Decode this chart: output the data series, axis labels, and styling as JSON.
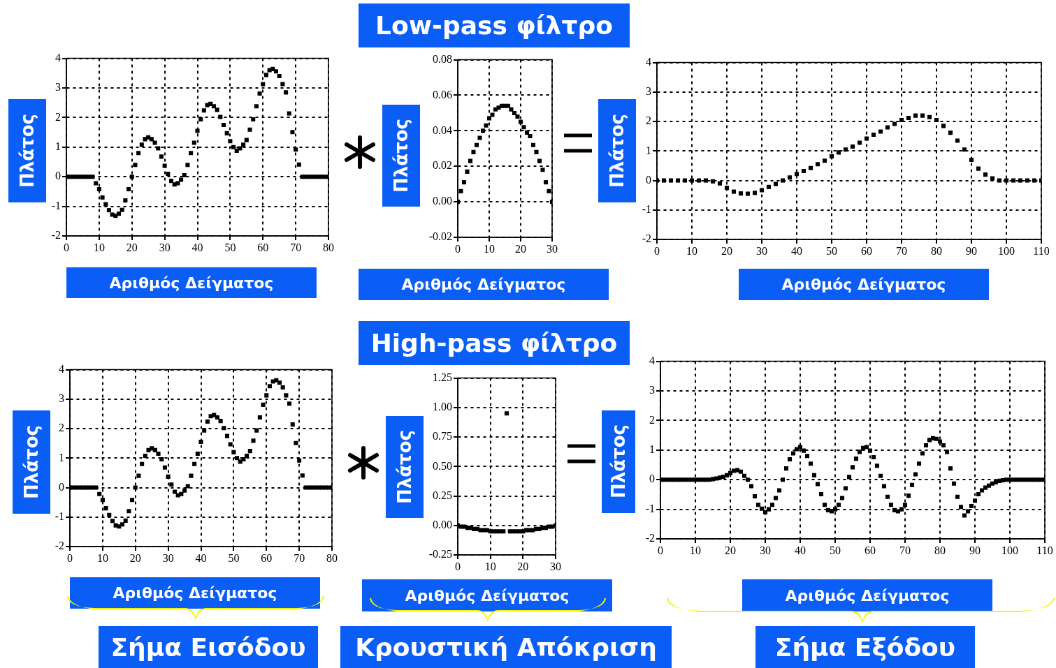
{
  "chart_data": [
    {
      "type": "scatter",
      "xlabel": "Αριθμός Δείγματος",
      "ylabel": "Πλάτος",
      "marker": "square",
      "grid": true,
      "legend": false,
      "xlim": [
        0,
        80
      ],
      "xticks": [
        0,
        10,
        20,
        30,
        40,
        50,
        60,
        70,
        80
      ],
      "ylim": [
        -2,
        4
      ],
      "yticks": [
        -2,
        -1,
        0,
        1,
        2,
        3,
        4
      ],
      "series": [
        {
          "color": "#000000",
          "x": [
            0,
            1,
            2,
            3,
            4,
            5,
            6,
            7,
            8,
            9,
            10,
            11,
            12,
            13,
            14,
            15,
            16,
            17,
            18,
            19,
            20,
            21,
            22,
            23,
            24,
            25,
            26,
            27,
            28,
            29,
            30,
            31,
            32,
            33,
            34,
            35,
            36,
            37,
            38,
            39,
            40,
            41,
            42,
            43,
            44,
            45,
            46,
            47,
            48,
            49,
            50,
            51,
            52,
            53,
            54,
            55,
            56,
            57,
            58,
            59,
            60,
            61,
            62,
            63,
            64,
            65,
            66,
            67,
            68,
            69,
            70,
            71,
            72,
            73,
            74,
            75,
            76,
            77,
            78,
            79,
            80
          ],
          "values": [
            0,
            0,
            0,
            0,
            0,
            0,
            0,
            0,
            0,
            -0.22,
            -0.42,
            -0.7,
            -0.93,
            -1.13,
            -1.28,
            -1.32,
            -1.25,
            -1.12,
            -0.8,
            -0.42,
            0,
            0.4,
            0.8,
            1.08,
            1.27,
            1.33,
            1.27,
            1.15,
            0.96,
            0.68,
            0.37,
            0.1,
            -0.14,
            -0.26,
            -0.22,
            -0.1,
            0.05,
            0.4,
            0.8,
            1.15,
            1.55,
            1.94,
            2.24,
            2.42,
            2.46,
            2.38,
            2.26,
            2.02,
            1.75,
            1.47,
            1.2,
            1.0,
            0.88,
            0.96,
            1.08,
            1.24,
            1.59,
            1.94,
            2.38,
            2.81,
            3.13,
            3.44,
            3.6,
            3.64,
            3.56,
            3.4,
            3.13,
            2.85,
            2.14,
            1.51,
            0.92,
            0.41,
            0,
            0,
            0,
            0,
            0,
            0,
            0,
            0,
            0
          ]
        }
      ]
    },
    {
      "type": "scatter",
      "title": "Low-pass φίλτρο",
      "xlabel": "Αριθμός Δείγματος",
      "ylabel": "Πλάτος",
      "marker": "square",
      "grid": true,
      "legend": false,
      "xlim": [
        0,
        30
      ],
      "xticks": [
        0,
        10,
        20,
        30
      ],
      "ylim": [
        -0.02,
        0.08
      ],
      "yticks": [
        -0.02,
        {
          "value": 0,
          "label": "0.00"
        },
        0.02,
        0.04,
        0.06,
        0.08
      ],
      "series": [
        {
          "color": "#000000",
          "x": [
            0,
            1,
            2,
            3,
            4,
            5,
            6,
            7,
            8,
            9,
            10,
            11,
            12,
            13,
            14,
            15,
            16,
            17,
            18,
            19,
            20,
            21,
            22,
            23,
            24,
            25,
            26,
            27,
            28,
            29,
            30
          ],
          "values": [
            0,
            0.006,
            0.011,
            0.017,
            0.023,
            0.028,
            0.032,
            0.036,
            0.04,
            0.043,
            0.047,
            0.049,
            0.052,
            0.053,
            0.054,
            0.054,
            0.054,
            0.052,
            0.05,
            0.048,
            0.045,
            0.042,
            0.039,
            0.037,
            0.032,
            0.028,
            0.023,
            0.018,
            0.011,
            0.006,
            0
          ]
        }
      ]
    },
    {
      "type": "scatter",
      "xlabel": "Αριθμός Δείγματος",
      "ylabel": "Πλάτος",
      "marker": "square",
      "grid": true,
      "legend": false,
      "xlim": [
        0,
        110
      ],
      "xticks": [
        0,
        10,
        20,
        30,
        40,
        50,
        60,
        70,
        80,
        90,
        100,
        110
      ],
      "ylim": [
        -2,
        4
      ],
      "yticks": [
        -2,
        -1,
        0,
        1,
        2,
        3,
        4
      ],
      "series": [
        {
          "color": "#000000",
          "x": [
            0,
            2,
            4,
            6,
            8,
            10,
            12,
            14,
            16,
            18,
            20,
            22,
            24,
            26,
            28,
            30,
            32,
            34,
            36,
            38,
            40,
            42,
            44,
            46,
            48,
            50,
            52,
            54,
            56,
            58,
            60,
            62,
            64,
            66,
            68,
            70,
            72,
            74,
            76,
            78,
            80,
            82,
            84,
            86,
            88,
            90,
            92,
            94,
            96,
            98,
            100,
            102,
            104,
            106,
            108,
            110
          ],
          "values": [
            0,
            0,
            0,
            0,
            0,
            0,
            0,
            0,
            -0.03,
            -0.1,
            -0.25,
            -0.38,
            -0.44,
            -0.45,
            -0.42,
            -0.33,
            -0.22,
            -0.12,
            0,
            0.1,
            0.22,
            0.32,
            0.42,
            0.55,
            0.67,
            0.82,
            0.95,
            1.05,
            1.15,
            1.28,
            1.42,
            1.55,
            1.66,
            1.8,
            1.92,
            2.05,
            2.12,
            2.2,
            2.2,
            2.15,
            2.05,
            1.85,
            1.62,
            1.35,
            1.05,
            0.7,
            0.4,
            0.2,
            0.07,
            0,
            0,
            0,
            0,
            0,
            0,
            0
          ]
        }
      ]
    },
    {
      "type": "scatter",
      "xlabel": "Αριθμός Δείγματος",
      "ylabel": "Πλάτος",
      "annotations": [
        "Σήμα Εισόδου"
      ],
      "marker": "square",
      "grid": true,
      "legend": false,
      "xlim": [
        0,
        80
      ],
      "xticks": [
        0,
        10,
        20,
        30,
        40,
        50,
        60,
        70,
        80
      ],
      "ylim": [
        -2,
        4
      ],
      "yticks": [
        -2,
        -1,
        0,
        1,
        2,
        3,
        4
      ],
      "series": [
        {
          "color": "#000000",
          "x": [
            0,
            1,
            2,
            3,
            4,
            5,
            6,
            7,
            8,
            9,
            10,
            11,
            12,
            13,
            14,
            15,
            16,
            17,
            18,
            19,
            20,
            21,
            22,
            23,
            24,
            25,
            26,
            27,
            28,
            29,
            30,
            31,
            32,
            33,
            34,
            35,
            36,
            37,
            38,
            39,
            40,
            41,
            42,
            43,
            44,
            45,
            46,
            47,
            48,
            49,
            50,
            51,
            52,
            53,
            54,
            55,
            56,
            57,
            58,
            59,
            60,
            61,
            62,
            63,
            64,
            65,
            66,
            67,
            68,
            69,
            70,
            71,
            72,
            73,
            74,
            75,
            76,
            77,
            78,
            79,
            80
          ],
          "values": [
            0,
            0,
            0,
            0,
            0,
            0,
            0,
            0,
            0,
            -0.22,
            -0.42,
            -0.7,
            -0.93,
            -1.13,
            -1.28,
            -1.32,
            -1.25,
            -1.12,
            -0.8,
            -0.42,
            0,
            0.4,
            0.8,
            1.08,
            1.27,
            1.33,
            1.27,
            1.15,
            0.96,
            0.68,
            0.37,
            0.1,
            -0.14,
            -0.26,
            -0.22,
            -0.1,
            0.05,
            0.4,
            0.8,
            1.15,
            1.55,
            1.94,
            2.24,
            2.42,
            2.46,
            2.38,
            2.26,
            2.02,
            1.75,
            1.47,
            1.2,
            1.0,
            0.88,
            0.96,
            1.08,
            1.24,
            1.59,
            1.94,
            2.38,
            2.81,
            3.13,
            3.44,
            3.6,
            3.64,
            3.56,
            3.4,
            3.13,
            2.85,
            2.14,
            1.51,
            0.92,
            0.41,
            0,
            0,
            0,
            0,
            0,
            0,
            0,
            0,
            0
          ]
        }
      ]
    },
    {
      "type": "scatter",
      "title": "High-pass φίλτρο",
      "xlabel": "Αριθμός Δείγματος",
      "ylabel": "Πλάτος",
      "annotations": [
        "Κρουστική Απόκριση"
      ],
      "marker": "square",
      "grid": true,
      "legend": false,
      "xlim": [
        0,
        30
      ],
      "xticks": [
        0,
        10,
        20,
        30
      ],
      "ylim": [
        -0.25,
        1.25
      ],
      "yticks": [
        -0.25,
        {
          "value": 0,
          "label": "0.00"
        },
        0.25,
        {
          "value": 0.5,
          "label": "0.50"
        },
        0.75,
        {
          "value": 1,
          "label": "1.00"
        },
        1.25
      ],
      "series": [
        {
          "color": "#000000",
          "x": [
            0,
            1,
            2,
            3,
            4,
            5,
            6,
            7,
            8,
            9,
            10,
            11,
            12,
            13,
            14,
            15,
            16,
            17,
            18,
            19,
            20,
            21,
            22,
            23,
            24,
            25,
            26,
            27,
            28,
            29,
            30
          ],
          "values": [
            0,
            -0.01,
            -0.01,
            -0.02,
            -0.02,
            -0.03,
            -0.03,
            -0.04,
            -0.04,
            -0.04,
            -0.05,
            -0.05,
            -0.05,
            -0.05,
            -0.05,
            0.95,
            -0.05,
            -0.05,
            -0.05,
            -0.05,
            -0.05,
            -0.04,
            -0.04,
            -0.04,
            -0.03,
            -0.03,
            -0.02,
            -0.02,
            -0.01,
            -0.01,
            0
          ]
        }
      ]
    },
    {
      "type": "scatter",
      "xlabel": "Αριθμός Δείγματος",
      "ylabel": "Πλάτος",
      "annotations": [
        "Σήμα Εξόδου"
      ],
      "marker": "square",
      "grid": true,
      "legend": false,
      "xlim": [
        0,
        110
      ],
      "xticks": [
        0,
        10,
        20,
        30,
        40,
        50,
        60,
        70,
        80,
        90,
        100,
        110
      ],
      "ylim": [
        -2,
        4
      ],
      "yticks": [
        -2,
        -1,
        0,
        1,
        2,
        3,
        4
      ],
      "series": [
        {
          "color": "#000000",
          "x": [
            0,
            1,
            2,
            3,
            4,
            5,
            6,
            7,
            8,
            9,
            10,
            11,
            12,
            13,
            14,
            15,
            16,
            17,
            18,
            19,
            20,
            21,
            22,
            23,
            24,
            25,
            26,
            27,
            28,
            29,
            30,
            31,
            32,
            33,
            34,
            35,
            36,
            37,
            38,
            39,
            40,
            41,
            42,
            43,
            44,
            45,
            46,
            47,
            48,
            49,
            50,
            51,
            52,
            53,
            54,
            55,
            56,
            57,
            58,
            59,
            60,
            61,
            62,
            63,
            64,
            65,
            66,
            67,
            68,
            69,
            70,
            71,
            72,
            73,
            74,
            75,
            76,
            77,
            78,
            79,
            80,
            81,
            82,
            83,
            84,
            85,
            86,
            87,
            88,
            89,
            90,
            91,
            92,
            93,
            94,
            95,
            96,
            97,
            98,
            99,
            100,
            101,
            102,
            103,
            104,
            105,
            106,
            107,
            108,
            109,
            110
          ],
          "values": [
            0,
            0,
            0,
            0,
            0,
            0,
            0,
            0,
            0,
            0,
            0,
            0,
            0,
            0,
            0,
            0.02,
            0.04,
            0.07,
            0.1,
            0.15,
            0.22,
            0.3,
            0.32,
            0.27,
            0.13,
            0,
            -0.22,
            -0.56,
            -0.85,
            -0.98,
            -1.1,
            -1.0,
            -0.85,
            -0.62,
            -0.36,
            0,
            0.38,
            0.69,
            0.89,
            1.03,
            1.1,
            0.98,
            0.8,
            0.54,
            0.15,
            -0.15,
            -0.49,
            -0.85,
            -1.03,
            -1.07,
            -1.0,
            -0.85,
            -0.62,
            -0.29,
            0.09,
            0.42,
            0.71,
            0.94,
            1.07,
            1.1,
            0.98,
            0.76,
            0.47,
            0.13,
            -0.22,
            -0.58,
            -0.85,
            -1.03,
            -1.07,
            -1.0,
            -0.85,
            -0.54,
            -0.18,
            0.18,
            0.54,
            0.89,
            1.16,
            1.34,
            1.4,
            1.38,
            1.29,
            1.16,
            0.94,
            0.38,
            -0.13,
            -0.58,
            -0.92,
            -1.21,
            -1.07,
            -0.89,
            -0.71,
            -0.49,
            -0.36,
            -0.27,
            -0.2,
            -0.13,
            -0.09,
            -0.04,
            -0.02,
            0,
            0,
            0,
            0,
            0,
            0,
            0,
            0,
            0,
            0,
            0,
            0
          ]
        }
      ]
    }
  ]
}
